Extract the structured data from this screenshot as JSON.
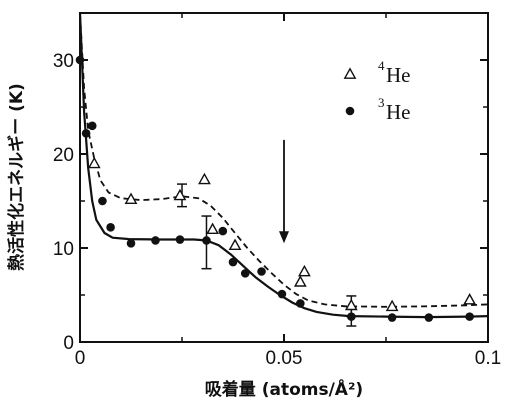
{
  "chart_data": {
    "type": "scatter",
    "title": "",
    "xlabel": "吸着量 (atoms/Å²)",
    "ylabel": "熱活性化エネルギー (K)",
    "xlim": [
      0,
      0.1
    ],
    "ylim": [
      0,
      35
    ],
    "x_ticks": [
      {
        "value": 0,
        "label": "0"
      },
      {
        "value": 0.05,
        "label": "0.05"
      },
      {
        "value": 0.1,
        "label": "0.1"
      }
    ],
    "y_ticks": [
      {
        "value": 0,
        "label": "0"
      },
      {
        "value": 10,
        "label": "10"
      },
      {
        "value": 20,
        "label": "20"
      },
      {
        "value": 30,
        "label": "30"
      }
    ],
    "legend_position": "top-right",
    "series": [
      {
        "name_sup": "4",
        "name_text": "He",
        "marker": "open-triangle",
        "fit_style": "dashed",
        "points": [
          [
            0.0035,
            19.0
          ],
          [
            0.0125,
            15.2
          ],
          [
            0.0245,
            15.6
          ],
          [
            0.0305,
            17.3
          ],
          [
            0.0325,
            12.0
          ],
          [
            0.038,
            10.3
          ],
          [
            0.054,
            6.4
          ],
          [
            0.055,
            7.5
          ],
          [
            0.0665,
            3.9
          ],
          [
            0.0765,
            3.8
          ],
          [
            0.0955,
            4.5
          ]
        ],
        "fit_curve": [
          [
            0.0,
            35.0
          ],
          [
            0.001,
            27.0
          ],
          [
            0.002,
            22.5
          ],
          [
            0.0035,
            19.5
          ],
          [
            0.005,
            17.2
          ],
          [
            0.007,
            15.9
          ],
          [
            0.01,
            15.3
          ],
          [
            0.015,
            15.1
          ],
          [
            0.02,
            15.2
          ],
          [
            0.025,
            15.5
          ],
          [
            0.029,
            15.3
          ],
          [
            0.032,
            14.5
          ],
          [
            0.035,
            13.2
          ],
          [
            0.038,
            11.6
          ],
          [
            0.041,
            10.0
          ],
          [
            0.044,
            8.6
          ],
          [
            0.047,
            7.3
          ],
          [
            0.05,
            6.1
          ],
          [
            0.053,
            5.1
          ],
          [
            0.056,
            4.4
          ],
          [
            0.06,
            4.0
          ],
          [
            0.065,
            3.8
          ],
          [
            0.075,
            3.75
          ],
          [
            0.085,
            3.8
          ],
          [
            0.095,
            3.9
          ],
          [
            0.1,
            4.0
          ]
        ]
      },
      {
        "name_sup": "3",
        "name_text": "He",
        "marker": "filled-circle",
        "fit_style": "solid",
        "points": [
          [
            0.0,
            30.0
          ],
          [
            0.0015,
            22.2
          ],
          [
            0.003,
            23.0
          ],
          [
            0.0055,
            15.0
          ],
          [
            0.0075,
            12.2
          ],
          [
            0.0125,
            10.5
          ],
          [
            0.0185,
            10.8
          ],
          [
            0.0245,
            10.9
          ],
          [
            0.031,
            10.8
          ],
          [
            0.035,
            11.8
          ],
          [
            0.0375,
            8.5
          ],
          [
            0.0405,
            7.3
          ],
          [
            0.0445,
            7.5
          ],
          [
            0.0495,
            5.1
          ],
          [
            0.054,
            4.1
          ],
          [
            0.0665,
            2.7
          ],
          [
            0.0765,
            2.6
          ],
          [
            0.0855,
            2.6
          ],
          [
            0.0955,
            2.7
          ]
        ],
        "fit_curve": [
          [
            0.0,
            35.0
          ],
          [
            0.001,
            24.5
          ],
          [
            0.002,
            18.5
          ],
          [
            0.003,
            15.0
          ],
          [
            0.004,
            13.0
          ],
          [
            0.006,
            11.6
          ],
          [
            0.008,
            11.1
          ],
          [
            0.012,
            10.95
          ],
          [
            0.02,
            10.9
          ],
          [
            0.028,
            10.9
          ],
          [
            0.031,
            10.8
          ],
          [
            0.034,
            10.3
          ],
          [
            0.037,
            9.3
          ],
          [
            0.04,
            8.1
          ],
          [
            0.043,
            6.9
          ],
          [
            0.046,
            5.9
          ],
          [
            0.049,
            5.0
          ],
          [
            0.052,
            4.2
          ],
          [
            0.055,
            3.6
          ],
          [
            0.058,
            3.2
          ],
          [
            0.062,
            2.9
          ],
          [
            0.066,
            2.75
          ],
          [
            0.075,
            2.7
          ],
          [
            0.085,
            2.65
          ],
          [
            0.095,
            2.7
          ],
          [
            0.1,
            2.75
          ]
        ]
      }
    ],
    "error_bars": [
      {
        "x": 0.025,
        "y": 15.6,
        "low": 14.4,
        "high": 16.8
      },
      {
        "x": 0.031,
        "y": 10.8,
        "low": 7.8,
        "high": 13.4
      },
      {
        "x": 0.0665,
        "y": 3.8,
        "low": 2.7,
        "high": 4.9
      },
      {
        "x": 0.0665,
        "y": 2.7,
        "low": 1.7,
        "high": 3.7
      }
    ],
    "arrow_annotation": {
      "x": 0.05,
      "y_top": 21.5,
      "y_tip": 10.5
    }
  }
}
